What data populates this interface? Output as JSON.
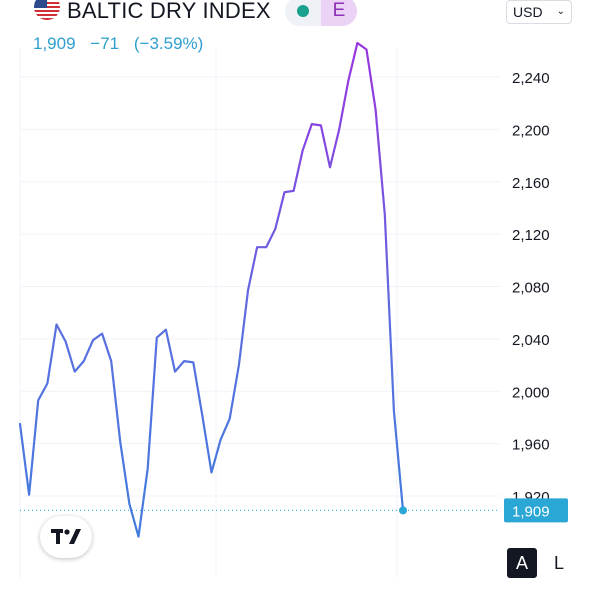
{
  "header": {
    "symbol_name": "BALTIC DRY INDEX",
    "flag_icon": "us-flag-icon",
    "status_color": "#19a18e",
    "badge_letter": "E",
    "currency": "USD",
    "last_price": "1,909",
    "change": "−71",
    "change_pct": "(−3.59%)"
  },
  "chart_data": {
    "type": "line",
    "title": "",
    "xlabel": "",
    "ylabel": "",
    "ylim": [
      1893,
      2268
    ],
    "y_ticks": [
      "2,240",
      "2,200",
      "2,160",
      "2,120",
      "2,080",
      "2,040",
      "2,000",
      "1,960",
      "1,920"
    ],
    "y_tick_values": [
      2240,
      2200,
      2160,
      2120,
      2080,
      2040,
      2000,
      1960,
      1920
    ],
    "grid": true,
    "last_value": 1909,
    "last_label": "1,909",
    "color_low": "#3d7fdc",
    "color_high": "#9a34e0",
    "price_line_color": "#2aa7d5",
    "series": [
      {
        "values": [
          1975,
          1921,
          1993,
          2006,
          2051,
          2038,
          2015,
          2023,
          2039,
          2044,
          2023,
          1961,
          1914,
          1889,
          1941,
          2041,
          2047,
          2015,
          2023,
          2022,
          1981,
          1938,
          1963,
          1979,
          2020,
          2077,
          2110,
          2110,
          2124,
          2152,
          2153,
          2184,
          2204,
          2203,
          2171,
          2200,
          2237,
          2266,
          2261,
          2215,
          2135,
          1985,
          1909
        ]
      }
    ]
  },
  "controls": {
    "tv_logo_icon": "tradingview-logo-icon",
    "scale_auto": "A",
    "scale_log": "L"
  }
}
